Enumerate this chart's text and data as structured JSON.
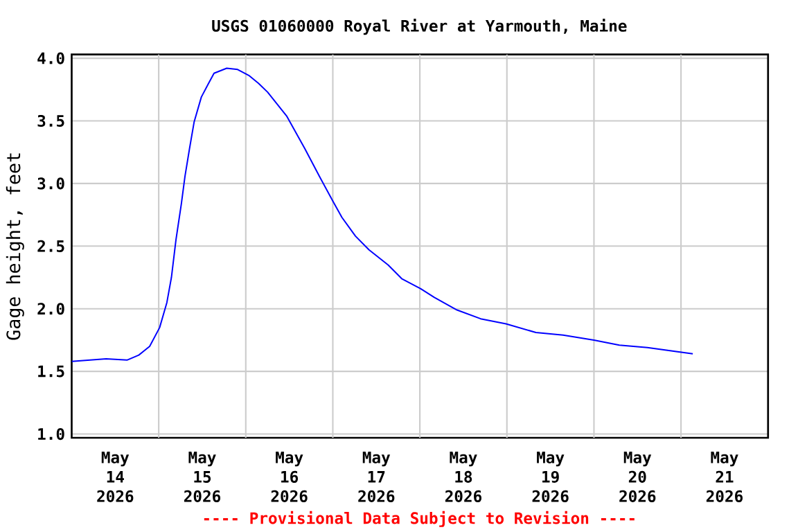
{
  "chart_data": {
    "type": "line",
    "title": "USGS 01060000 Royal River at Yarmouth, Maine",
    "ylabel": "Gage height, feet",
    "annotations": [
      "---- Provisional Data Subject to Revision ----"
    ],
    "x": [
      "2026-05-14T00:00",
      "2026-05-14T09:30",
      "2026-05-14T15:15",
      "2026-05-14T18:30",
      "2026-05-14T21:30",
      "2026-05-15T00:15",
      "2026-05-15T02:15",
      "2026-05-15T03:30",
      "2026-05-15T04:45",
      "2026-05-15T06:15",
      "2026-05-15T07:15",
      "2026-05-15T08:30",
      "2026-05-15T09:45",
      "2026-05-15T11:45",
      "2026-05-15T13:45",
      "2026-05-15T15:15",
      "2026-05-15T18:45",
      "2026-05-15T21:45",
      "2026-05-16T01:00",
      "2026-05-16T03:30",
      "2026-05-16T06:00",
      "2026-05-16T11:15",
      "2026-05-16T16:15",
      "2026-05-16T20:15",
      "2026-05-17T00:00",
      "2026-05-17T02:30",
      "2026-05-17T06:15",
      "2026-05-17T10:00",
      "2026-05-17T15:15",
      "2026-05-17T19:00",
      "2026-05-18T00:15",
      "2026-05-18T04:00",
      "2026-05-18T10:15",
      "2026-05-18T16:45",
      "2026-05-18T23:45",
      "2026-05-19T08:00",
      "2026-05-19T15:30",
      "2026-05-20T00:00",
      "2026-05-20T07:00",
      "2026-05-20T14:45",
      "2026-05-20T22:15",
      "2026-05-21T03:15"
    ],
    "series": [
      {
        "color": "#0000ff",
        "values": [
          1.58,
          1.6,
          1.59,
          1.63,
          1.7,
          1.85,
          2.05,
          2.25,
          2.55,
          2.84,
          3.06,
          3.28,
          3.49,
          3.69,
          3.8,
          3.88,
          3.92,
          3.91,
          3.86,
          3.8,
          3.73,
          3.54,
          3.28,
          3.06,
          2.86,
          2.73,
          2.58,
          2.47,
          2.35,
          2.24,
          2.16,
          2.09,
          1.99,
          1.92,
          1.88,
          1.81,
          1.79,
          1.75,
          1.71,
          1.69,
          1.66,
          1.64
        ]
      }
    ],
    "xlim": [
      "2026-05-14T00:00",
      "2026-05-22T00:00"
    ],
    "ylim": [
      0.97,
      4.03
    ],
    "xticks": [
      {
        "value": "2026-05-14T12:00",
        "label": "May 14 2026"
      },
      {
        "value": "2026-05-15T12:00",
        "label": "May 15 2026"
      },
      {
        "value": "2026-05-16T12:00",
        "label": "May 16 2026"
      },
      {
        "value": "2026-05-17T12:00",
        "label": "May 17 2026"
      },
      {
        "value": "2026-05-18T12:00",
        "label": "May 18 2026"
      },
      {
        "value": "2026-05-19T12:00",
        "label": "May 19 2026"
      },
      {
        "value": "2026-05-20T12:00",
        "label": "May 20 2026"
      },
      {
        "value": "2026-05-21T12:00",
        "label": "May 21 2026"
      },
      {
        "value": "2026-05-15T00:00",
        "label": null
      },
      {
        "value": "2026-05-16T00:00",
        "label": null
      },
      {
        "value": "2026-05-17T00:00",
        "label": null
      },
      {
        "value": "2026-05-18T00:00",
        "label": null
      },
      {
        "value": "2026-05-19T00:00",
        "label": null
      },
      {
        "value": "2026-05-20T00:00",
        "label": null
      },
      {
        "value": "2026-05-21T00:00",
        "label": null
      }
    ],
    "yticks": [
      {
        "value": 1.0,
        "label": "1.0"
      },
      {
        "value": 1.5,
        "label": "1.5"
      },
      {
        "value": 2.0,
        "label": "2.0"
      },
      {
        "value": 2.5,
        "label": "2.5"
      },
      {
        "value": 3.0,
        "label": "3.0"
      },
      {
        "value": 3.5,
        "label": "3.5"
      },
      {
        "value": 4.0,
        "label": "4.0"
      }
    ],
    "grid": true,
    "marker": "none",
    "line_style": "solid"
  }
}
